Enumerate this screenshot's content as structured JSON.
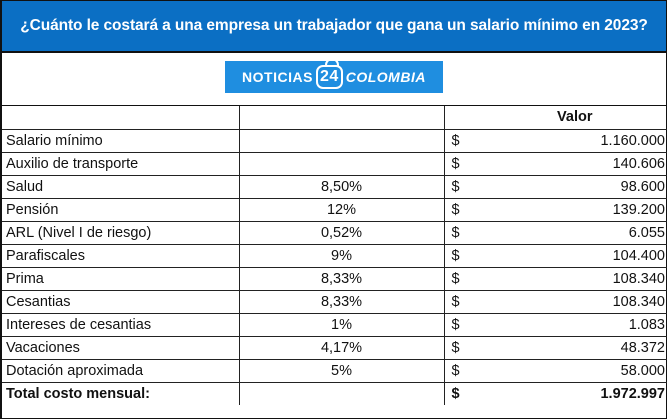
{
  "title": "¿Cuánto le costará a una empresa un trabajador que gana un salario mínimo en 2023?",
  "logo": {
    "left": "NOTICIAS",
    "number": "24",
    "right": "COLOMBIA",
    "bg_color": "#1f8ee0"
  },
  "colors": {
    "header_bg": "#0b6fc4",
    "header_text": "#ffffff"
  },
  "table": {
    "headers": [
      "",
      "",
      "Valor"
    ],
    "currency_symbol": "$",
    "rows": [
      {
        "concepto": "Salario mínimo",
        "porcentaje": "",
        "valor": "1.160.000"
      },
      {
        "concepto": "Auxilio de transporte",
        "porcentaje": "",
        "valor": "140.606"
      },
      {
        "concepto": "Salud",
        "porcentaje": "8,50%",
        "valor": "98.600"
      },
      {
        "concepto": "Pensión",
        "porcentaje": "12%",
        "valor": "139.200"
      },
      {
        "concepto": "ARL (Nivel I de riesgo)",
        "porcentaje": "0,52%",
        "valor": "6.055"
      },
      {
        "concepto": "Parafiscales",
        "porcentaje": "9%",
        "valor": "104.400"
      },
      {
        "concepto": "Prima",
        "porcentaje": "8,33%",
        "valor": "108.340"
      },
      {
        "concepto": "Cesantias",
        "porcentaje": "8,33%",
        "valor": "108.340"
      },
      {
        "concepto": "Intereses de cesantias",
        "porcentaje": "1%",
        "valor": "1.083"
      },
      {
        "concepto": "Vacaciones",
        "porcentaje": "4,17%",
        "valor": "48.372"
      },
      {
        "concepto": "Dotación aproximada",
        "porcentaje": "5%",
        "valor": "58.000"
      }
    ],
    "total": {
      "concepto": "Total costo mensual:",
      "porcentaje": "",
      "valor": "1.972.997"
    }
  }
}
